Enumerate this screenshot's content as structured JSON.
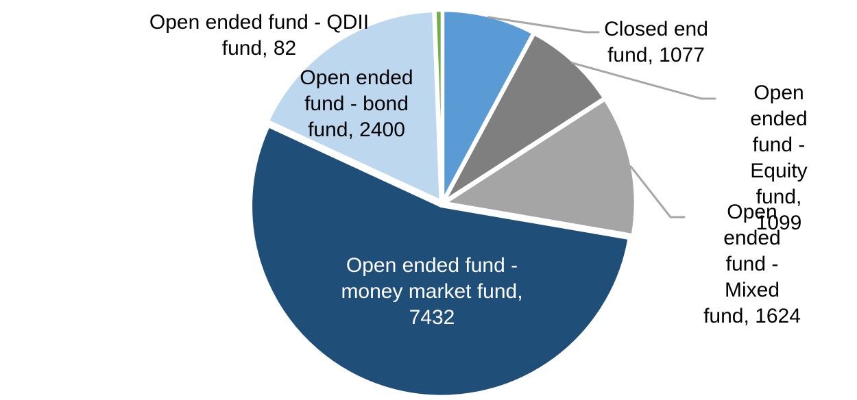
{
  "chart_data": {
    "type": "pie",
    "start_angle_deg": 0,
    "direction": "clockwise",
    "total": 13714,
    "legend_position": "none",
    "grid": false,
    "leader_line_color": "#A6A6A6",
    "background_color": "#FFFFFF",
    "slices": [
      {
        "key": "closed_end",
        "category": "Closed end fund",
        "value": 1077,
        "color": "#5B9BD5",
        "label_text": "Closed end\nfund, 1077",
        "label_color": "#000000"
      },
      {
        "key": "equity",
        "category": "Open ended fund - Equity fund",
        "value": 1099,
        "color": "#7F7F7F",
        "label_text": "Open ended\nfund - Equity\nfund, 1099",
        "label_color": "#000000"
      },
      {
        "key": "mixed",
        "category": "Open ended fund - Mixed fund",
        "value": 1624,
        "color": "#A5A5A5",
        "label_text": "Open ended\nfund - Mixed\nfund, 1624",
        "label_color": "#000000"
      },
      {
        "key": "money_market",
        "category": "Open ended fund - money market fund",
        "value": 7432,
        "color": "#1F4E79",
        "label_text": "Open ended fund -\nmoney market fund,\n7432",
        "label_color": "#FFFFFF"
      },
      {
        "key": "bond",
        "category": "Open ended fund - bond fund",
        "value": 2400,
        "color": "#BDD7EE",
        "label_text": "Open ended\nfund - bond\nfund, 2400",
        "label_color": "#000000"
      },
      {
        "key": "qdii",
        "category": "Open ended fund - QDII fund",
        "value": 82,
        "color": "#70AD47",
        "label_text": "Open ended fund - QDII\nfund, 82",
        "label_color": "#000000"
      }
    ]
  }
}
